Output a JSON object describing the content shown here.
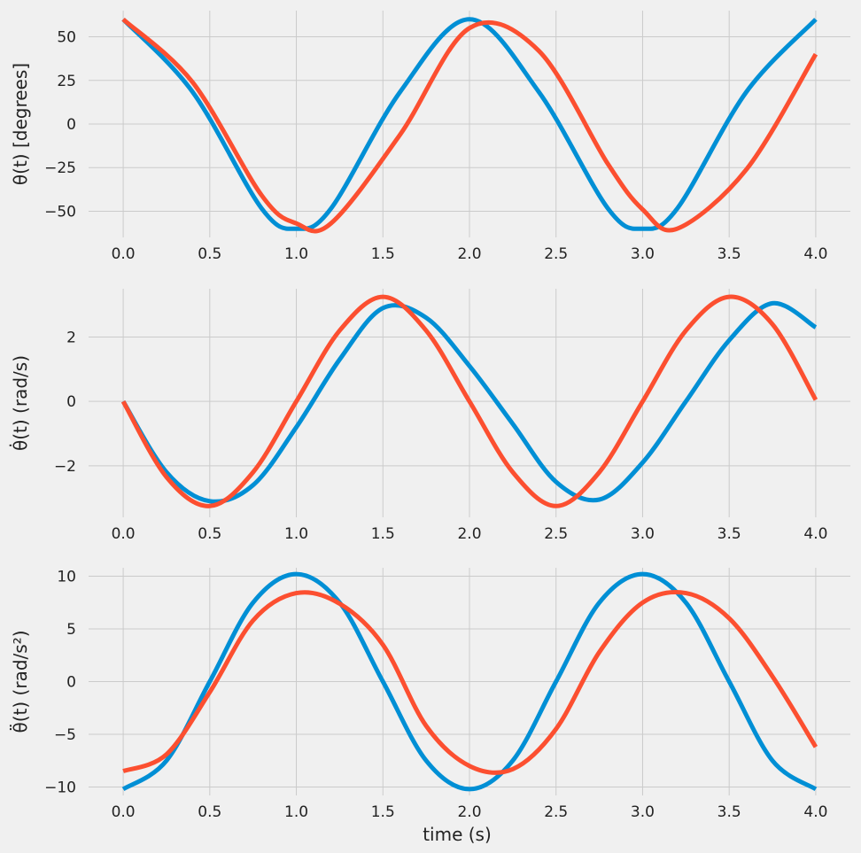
{
  "chart_data": [
    {
      "type": "line",
      "title": "",
      "xlabel": "",
      "ylabel": "θ(t) [degrees]",
      "xlim": [
        -0.2,
        4.2
      ],
      "ylim": [
        -65,
        65
      ],
      "xticks": [
        0.0,
        0.5,
        1.0,
        1.5,
        2.0,
        2.5,
        3.0,
        3.5,
        4.0
      ],
      "xtick_labels": [
        "0.0",
        "0.5",
        "1.0",
        "1.5",
        "2.0",
        "2.5",
        "3.0",
        "3.5",
        "4.0"
      ],
      "yticks": [
        -50,
        -25,
        0,
        25,
        50
      ],
      "ytick_labels": [
        "−50",
        "−25",
        "0",
        "25",
        "50"
      ],
      "grid": true,
      "x": [
        0.0,
        0.4,
        0.8,
        1.0,
        1.2,
        1.6,
        2.0,
        2.4,
        2.8,
        3.0,
        3.2,
        3.6,
        4.0
      ],
      "series": [
        {
          "name": "blue",
          "color": "#008fd5",
          "values": [
            60,
            18.5,
            -48.5,
            -60,
            -48.5,
            18.5,
            60,
            18.5,
            -48.5,
            -60,
            -48.5,
            18.5,
            60
          ]
        },
        {
          "name": "red",
          "color": "#fc4f30",
          "values": [
            60,
            24,
            -41,
            -57,
            -57,
            -6,
            55,
            42,
            -23,
            -49,
            -60,
            -26,
            40
          ]
        }
      ]
    },
    {
      "type": "line",
      "title": "",
      "xlabel": "",
      "ylabel": "θ̇(t) (rad/s)",
      "xlim": [
        -0.2,
        4.2
      ],
      "ylim": [
        -3.6,
        3.5
      ],
      "xticks": [
        0.0,
        0.5,
        1.0,
        1.5,
        2.0,
        2.5,
        3.0,
        3.5,
        4.0
      ],
      "xtick_labels": [
        "0.0",
        "0.5",
        "1.0",
        "1.5",
        "2.0",
        "2.5",
        "3.0",
        "3.5",
        "4.0"
      ],
      "yticks": [
        -2,
        0,
        2
      ],
      "ytick_labels": [
        "−2",
        "0",
        "2"
      ],
      "grid": true,
      "x": [
        0.0,
        0.25,
        0.5,
        0.75,
        1.0,
        1.25,
        1.5,
        1.75,
        2.0,
        2.25,
        2.5,
        2.75,
        3.0,
        3.25,
        3.5,
        3.75,
        4.0
      ],
      "series": [
        {
          "name": "blue",
          "color": "#008fd5",
          "values": [
            0,
            -2.2,
            -3.1,
            -2.6,
            -0.8,
            1.3,
            2.9,
            2.6,
            1.1,
            -0.7,
            -2.5,
            -3.05,
            -1.9,
            0.0,
            1.9,
            3.05,
            2.3
          ]
        },
        {
          "name": "red",
          "color": "#fc4f30",
          "values": [
            0,
            -2.35,
            -3.25,
            -2.2,
            0.0,
            2.2,
            3.25,
            2.2,
            0.0,
            -2.2,
            -3.25,
            -2.2,
            0.0,
            2.2,
            3.25,
            2.4,
            0.05
          ]
        }
      ]
    },
    {
      "type": "line",
      "title": "",
      "xlabel": "time (s)",
      "ylabel": "θ̈(t) (rad/s²)",
      "xlim": [
        -0.2,
        4.2
      ],
      "ylim": [
        -10.8,
        10.8
      ],
      "xticks": [
        0.0,
        0.5,
        1.0,
        1.5,
        2.0,
        2.5,
        3.0,
        3.5,
        4.0
      ],
      "xtick_labels": [
        "0.0",
        "0.5",
        "1.0",
        "1.5",
        "2.0",
        "2.5",
        "3.0",
        "3.5",
        "4.0"
      ],
      "yticks": [
        -10,
        -5,
        0,
        5,
        10
      ],
      "ytick_labels": [
        "−10",
        "−5",
        "0",
        "5",
        "10"
      ],
      "grid": true,
      "x": [
        0.0,
        0.25,
        0.5,
        0.75,
        1.0,
        1.25,
        1.5,
        1.75,
        2.0,
        2.25,
        2.5,
        2.75,
        3.0,
        3.25,
        3.5,
        3.75,
        4.0
      ],
      "series": [
        {
          "name": "blue",
          "color": "#008fd5",
          "values": [
            -10.2,
            -7.5,
            0,
            7.5,
            10.2,
            7.5,
            0,
            -7.5,
            -10.2,
            -7.5,
            0,
            7.5,
            10.2,
            7.5,
            0,
            -7.5,
            -10.2
          ]
        },
        {
          "name": "red",
          "color": "#fc4f30",
          "values": [
            -8.5,
            -6.9,
            -1.0,
            5.8,
            8.4,
            7.4,
            3.5,
            -4.2,
            -8.0,
            -8.3,
            -4.5,
            2.8,
            7.5,
            8.4,
            6.0,
            0.5,
            -6.2
          ]
        }
      ]
    }
  ]
}
